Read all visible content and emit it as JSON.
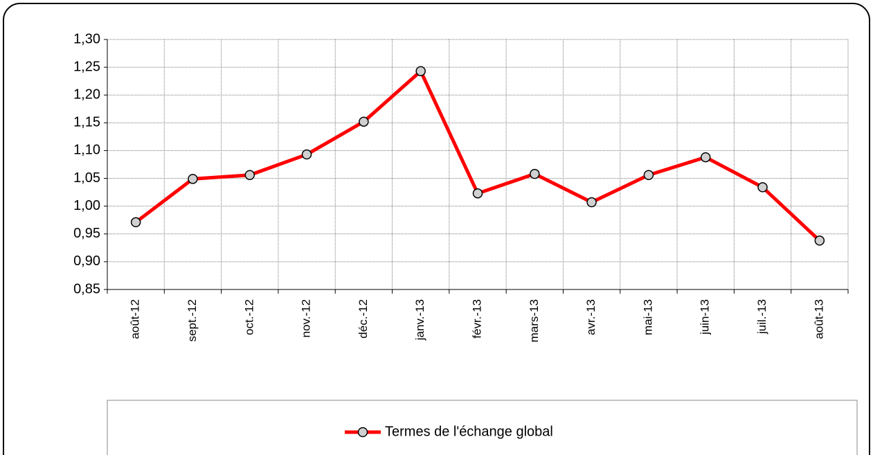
{
  "chart_data": {
    "type": "line",
    "categories": [
      "août-12",
      "sept.-12",
      "oct.-12",
      "nov.-12",
      "déc.-12",
      "janv.-13",
      "févr.-13",
      "mars-13",
      "avr.-13",
      "mai-13",
      "juin-13",
      "juil.-13",
      "août-13"
    ],
    "series": [
      {
        "name": "Termes de l'échange global",
        "color": "#ff0000",
        "marker_color": "#d0d0d0",
        "values": [
          0.971,
          1.049,
          1.056,
          1.093,
          1.152,
          1.243,
          1.023,
          1.058,
          1.007,
          1.056,
          1.088,
          1.034,
          0.938
        ]
      }
    ],
    "ylim": [
      0.85,
      1.3
    ],
    "yticks": [
      {
        "value": 0.85,
        "label": "0,85"
      },
      {
        "value": 0.9,
        "label": "0,90"
      },
      {
        "value": 0.95,
        "label": "0,95"
      },
      {
        "value": 1.0,
        "label": "1,00"
      },
      {
        "value": 1.05,
        "label": "1,05"
      },
      {
        "value": 1.1,
        "label": "1,10"
      },
      {
        "value": 1.15,
        "label": "1,15"
      },
      {
        "value": 1.2,
        "label": "1,20"
      },
      {
        "value": 1.25,
        "label": "1,25"
      },
      {
        "value": 1.3,
        "label": "1,30"
      }
    ],
    "grid": true,
    "legend": "bottom"
  }
}
